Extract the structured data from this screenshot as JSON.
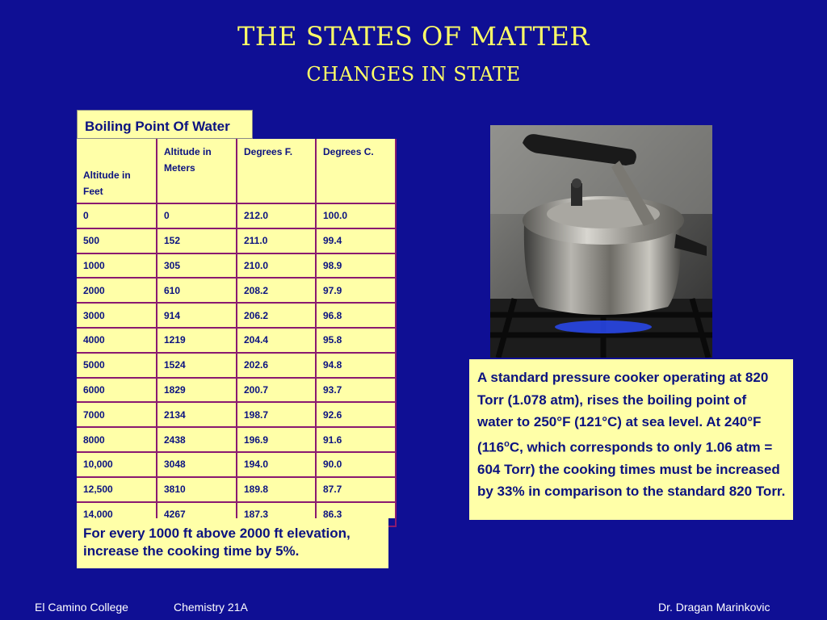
{
  "title": "THE STATES OF MATTER",
  "subtitle": "CHANGES IN STATE",
  "table": {
    "label": "Boiling Point Of Water",
    "headers": [
      "Altitude in Feet",
      "Altitude in Meters",
      "Degrees F.",
      "Degrees C."
    ],
    "rows": [
      [
        "0",
        "0",
        "212.0",
        "100.0"
      ],
      [
        "500",
        "152",
        "211.0",
        "99.4"
      ],
      [
        "1000",
        "305",
        "210.0",
        "98.9"
      ],
      [
        "2000",
        "610",
        "208.2",
        "97.9"
      ],
      [
        "3000",
        "914",
        "206.2",
        "96.8"
      ],
      [
        "4000",
        "1219",
        "204.4",
        "95.8"
      ],
      [
        "5000",
        "1524",
        "202.6",
        "94.8"
      ],
      [
        "6000",
        "1829",
        "200.7",
        "93.7"
      ],
      [
        "7000",
        "2134",
        "198.7",
        "92.6"
      ],
      [
        "8000",
        "2438",
        "196.9",
        "91.6"
      ],
      [
        "10,000",
        "3048",
        "194.0",
        "90.0"
      ],
      [
        "12,500",
        "3810",
        "189.8",
        "87.7"
      ],
      [
        "14,000",
        "4267",
        "187.3",
        "86.3"
      ]
    ]
  },
  "note_left": "For every 1000 ft above 2000 ft elevation, increase the cooking time by 5%.",
  "note_right": {
    "part1": "A standard pressure cooker operating at 820 Torr (1.078 atm), rises the boiling point of water to 250°F (121°C) at sea level. At 240°F (116",
    "sup": "o",
    "part2": "C, which corresponds to only 1.06 atm = 604 Torr) the cooking times must be increased by 33% in comparison to the standard 820 Torr."
  },
  "photo_icon": "pressure-cooker-on-gas-stove",
  "footer": {
    "college": "El Camino College",
    "course": "Chemistry 21A",
    "author": "Dr. Dragan Marinkovic"
  }
}
